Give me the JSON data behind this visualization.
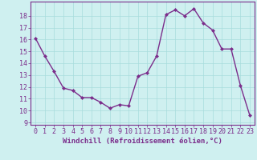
{
  "x": [
    0,
    1,
    2,
    3,
    4,
    5,
    6,
    7,
    8,
    9,
    10,
    11,
    12,
    13,
    14,
    15,
    16,
    17,
    18,
    19,
    20,
    21,
    22,
    23
  ],
  "y": [
    16.1,
    14.6,
    13.3,
    11.9,
    11.7,
    11.1,
    11.1,
    10.7,
    10.2,
    10.5,
    10.4,
    12.9,
    13.2,
    14.6,
    18.1,
    18.5,
    18.0,
    18.6,
    17.4,
    16.8,
    15.2,
    15.2,
    12.1,
    9.6
  ],
  "line_color": "#7b2d8b",
  "marker": "D",
  "marker_size": 2.0,
  "line_width": 1.0,
  "bg_color": "#cff0f0",
  "grid_color": "#a8dcdc",
  "xlabel": "Windchill (Refroidissement éolien,°C)",
  "xlabel_fontsize": 6.5,
  "xlabel_color": "#7b2d8b",
  "yticks": [
    9,
    10,
    11,
    12,
    13,
    14,
    15,
    16,
    17,
    18
  ],
  "xticks": [
    0,
    1,
    2,
    3,
    4,
    5,
    6,
    7,
    8,
    9,
    10,
    11,
    12,
    13,
    14,
    15,
    16,
    17,
    18,
    19,
    20,
    21,
    22,
    23
  ],
  "ylim": [
    8.8,
    19.2
  ],
  "xlim": [
    -0.5,
    23.5
  ],
  "tick_fontsize": 6.0,
  "tick_color": "#7b2d8b",
  "axis_color": "#7b2d8b"
}
